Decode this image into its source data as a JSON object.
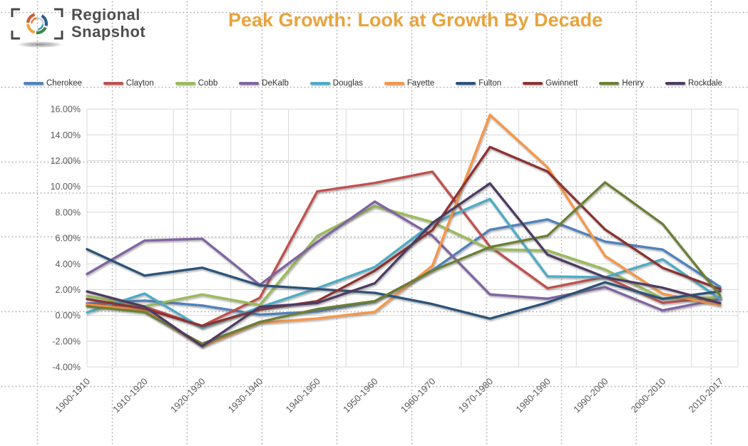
{
  "header": {
    "brand_line1": "Regional",
    "brand_line2": "Snapshot",
    "title": "Peak Growth: Look at Growth By Decade"
  },
  "colors": {
    "title": "#E8A33C",
    "brand_text": "#4D4E50",
    "axis_text": "#595959",
    "legend_text": "#2F2F2F",
    "gridline": "#D9D9D9",
    "logo_bracket": "#47484A",
    "logo_blue": "#2E5F8A",
    "logo_green": "#3E8648",
    "logo_amber": "#EDA63D",
    "logo_red": "#CE5B32",
    "logo_orange": "#E8823A",
    "logo_teal": "#3A9DA8",
    "logo_gray_ring": "#C6CBCE"
  },
  "chart_data": {
    "type": "line",
    "title": "Peak Growth: Look at Growth By Decade",
    "xlabel": "",
    "ylabel": "",
    "ylim": [
      -4,
      16
    ],
    "ytick_step": 2,
    "ytick_format": "percent_2dp",
    "grid": true,
    "legend_position": "top",
    "categories": [
      "1900-1910",
      "1910-1920",
      "1920-1930",
      "1930-1940",
      "1940-1950",
      "1950-1960",
      "1960-1970",
      "1970-1980",
      "1980-1990",
      "1990-2000",
      "2000-2010",
      "2010-2017"
    ],
    "series": [
      {
        "name": "Cherokee",
        "color": "#4F81BD",
        "values": [
          0.93,
          1.15,
          0.77,
          0.06,
          0.31,
          1.08,
          3.5,
          6.64,
          7.45,
          5.73,
          5.11,
          2.21
        ]
      },
      {
        "name": "Clayton",
        "color": "#C0504D",
        "values": [
          0.89,
          0.68,
          -0.81,
          1.36,
          9.62,
          10.27,
          11.15,
          5.34,
          2.11,
          2.99,
          0.97,
          1.42
        ]
      },
      {
        "name": "Cobb",
        "color": "#9BBB59",
        "values": [
          1.51,
          0.72,
          1.63,
          0.81,
          6.16,
          8.47,
          7.24,
          5.13,
          5.04,
          3.57,
          1.32,
          1.4
        ]
      },
      {
        "name": "DeKalb",
        "color": "#8064A2",
        "values": [
          3.21,
          5.8,
          5.95,
          2.37,
          5.69,
          8.83,
          6.18,
          1.63,
          1.3,
          2.2,
          0.39,
          1.27
        ]
      },
      {
        "name": "Douglas",
        "color": "#4BACC6",
        "values": [
          0.24,
          1.7,
          -0.97,
          0.63,
          2.11,
          3.75,
          7.12,
          9.04,
          3.03,
          2.96,
          4.36,
          1.28
        ]
      },
      {
        "name": "Fayette",
        "color": "#F79646",
        "values": [
          0.84,
          0.39,
          -2.4,
          -0.57,
          -0.24,
          0.28,
          3.86,
          15.56,
          11.49,
          4.62,
          1.68,
          0.79
        ]
      },
      {
        "name": "Fulton",
        "color": "#2C5379",
        "values": [
          5.14,
          3.09,
          3.7,
          2.33,
          2.05,
          1.75,
          0.88,
          -0.25,
          1.0,
          2.57,
          1.28,
          1.88
        ]
      },
      {
        "name": "Gwinnett",
        "color": "#8C3230",
        "values": [
          1.27,
          0.52,
          -0.82,
          0.44,
          1.11,
          3.47,
          6.62,
          13.06,
          11.16,
          6.67,
          3.69,
          2.04
        ]
      },
      {
        "name": "Henry",
        "color": "#6A7F33",
        "values": [
          0.71,
          0.25,
          -2.2,
          -0.51,
          0.49,
          1.11,
          3.47,
          5.3,
          6.18,
          10.32,
          7.09,
          1.53
        ]
      },
      {
        "name": "Rockdale",
        "color": "#4D3B62",
        "values": [
          1.86,
          0.68,
          -2.39,
          0.66,
          0.96,
          2.49,
          7.17,
          10.24,
          4.72,
          2.96,
          2.15,
          0.95
        ]
      }
    ]
  }
}
